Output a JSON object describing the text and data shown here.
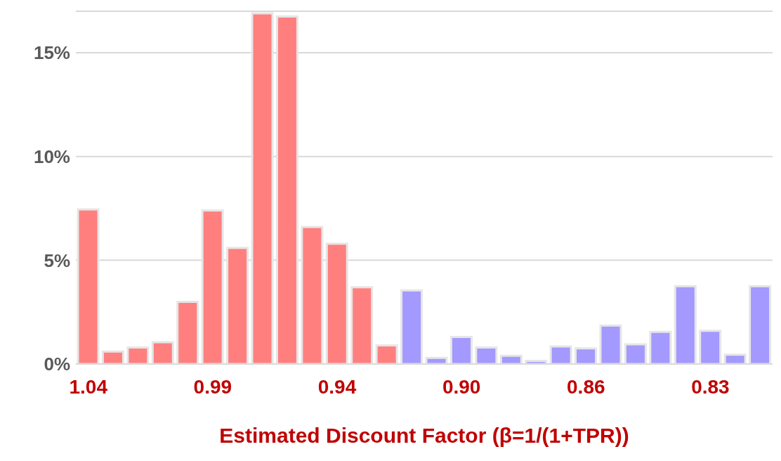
{
  "chart_data": {
    "type": "bar",
    "xlabel": "Estimated Discount Factor (β=1/(1+TPR))",
    "categories": [
      "1.04",
      null,
      null,
      null,
      null,
      "0.99",
      null,
      null,
      null,
      null,
      "0.94",
      null,
      null,
      null,
      null,
      "0.90",
      null,
      null,
      null,
      null,
      "0.86",
      null,
      null,
      null,
      null,
      "0.83",
      null,
      null
    ],
    "values": [
      7.45,
      0.6,
      0.8,
      1.05,
      3.0,
      7.4,
      5.6,
      16.9,
      16.75,
      6.6,
      5.8,
      3.7,
      0.9,
      3.55,
      0.3,
      1.3,
      0.8,
      0.4,
      0.15,
      0.85,
      0.75,
      1.85,
      0.95,
      1.55,
      3.75,
      1.6,
      0.45,
      3.75
    ],
    "colors": [
      "#ff7f7f",
      "#ff7f7f",
      "#ff7f7f",
      "#ff7f7f",
      "#ff7f7f",
      "#ff7f7f",
      "#ff7f7f",
      "#ff7f7f",
      "#ff7f7f",
      "#ff7f7f",
      "#ff7f7f",
      "#ff7f7f",
      "#ff7f7f",
      "#a399ff",
      "#a399ff",
      "#a399ff",
      "#a399ff",
      "#a399ff",
      "#a399ff",
      "#a399ff",
      "#a399ff",
      "#a399ff",
      "#a399ff",
      "#a399ff",
      "#a399ff",
      "#a399ff",
      "#a399ff",
      "#a399ff"
    ],
    "ylim": [
      0,
      17
    ],
    "yticks": [
      {
        "value": 0,
        "label": "0%"
      },
      {
        "value": 5,
        "label": "5%"
      },
      {
        "value": 10,
        "label": "10%"
      },
      {
        "value": 15,
        "label": "15%"
      }
    ],
    "grid": "y"
  }
}
